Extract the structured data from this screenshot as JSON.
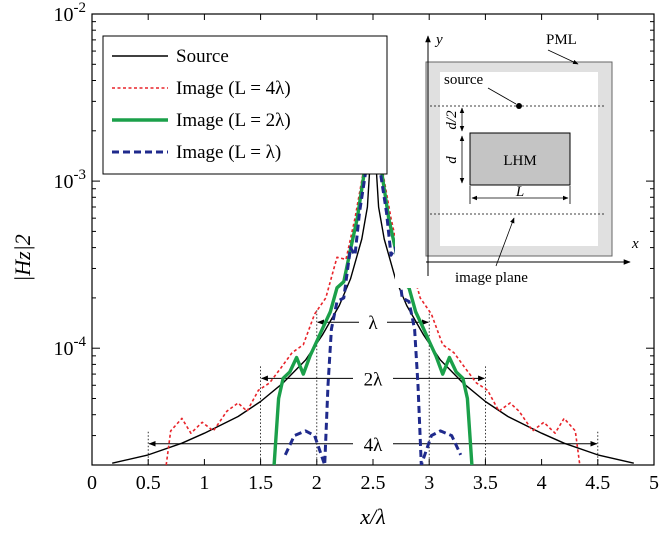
{
  "chart_data": {
    "type": "line",
    "xlabel": "x/λ",
    "ylabel": "|Hz|2",
    "xlim": [
      0,
      5
    ],
    "ylim": [
      2e-05,
      0.01
    ],
    "yscale": "log",
    "xticks": [
      0,
      0.5,
      1,
      1.5,
      2,
      2.5,
      3,
      3.5,
      4,
      4.5,
      5
    ],
    "xtick_labels": [
      "0",
      "0.5",
      "1",
      "1.5",
      "2",
      "2.5",
      "3",
      "3.5",
      "4",
      "4.5",
      "5"
    ],
    "yticks": [
      0.0001,
      0.001,
      0.01
    ],
    "ytick_labels": [
      {
        "base": "10",
        "exp": "-4"
      },
      {
        "base": "10",
        "exp": "-3"
      },
      {
        "base": "10",
        "exp": "-2"
      }
    ],
    "legend_position": "top-left",
    "series": [
      {
        "name": "Source",
        "color": "#000000",
        "style": "solid",
        "x": [
          0.18,
          0.5,
          0.8,
          1.0,
          1.3,
          1.5,
          1.7,
          1.9,
          2.05,
          2.2,
          2.3,
          2.4,
          2.45,
          2.48,
          2.5,
          2.52,
          2.55,
          2.6,
          2.7,
          2.8,
          2.95,
          3.1,
          3.3,
          3.5,
          3.7,
          4.0,
          4.2,
          4.5,
          4.82
        ],
        "y": [
          2.05e-05,
          2.3e-05,
          2.7e-05,
          3.1e-05,
          3.9e-05,
          4.8e-05,
          6.2e-05,
          8.5e-05,
          0.00012,
          0.00018,
          0.00026,
          0.00045,
          0.0007,
          0.0015,
          0.0045,
          0.0015,
          0.0007,
          0.00045,
          0.00026,
          0.00018,
          0.00012,
          8.5e-05,
          6.2e-05,
          4.8e-05,
          3.9e-05,
          3.1e-05,
          2.7e-05,
          2.3e-05,
          2.05e-05
        ]
      },
      {
        "name": "Image (L = 4λ)",
        "color": "#e8242a",
        "style": "dotted",
        "x": [
          0.66,
          0.7,
          0.8,
          0.88,
          0.98,
          1.08,
          1.2,
          1.3,
          1.38,
          1.48,
          1.58,
          1.68,
          1.78,
          1.88,
          1.98,
          2.08,
          2.18,
          2.26,
          2.34,
          2.42,
          2.5,
          2.58,
          2.66,
          2.74,
          2.82,
          2.92,
          3.02,
          3.12,
          3.22,
          3.32,
          3.42,
          3.52,
          3.62,
          3.72,
          3.8,
          3.92,
          4.02,
          4.12,
          4.2,
          4.3,
          4.34
        ],
        "y": [
          2e-05,
          3.2e-05,
          3.8e-05,
          3.1e-05,
          3.6e-05,
          3.2e-05,
          4.2e-05,
          4.7e-05,
          4.2e-05,
          5.6e-05,
          6.2e-05,
          7.6e-05,
          9.4e-05,
          0.000105,
          0.00016,
          0.0002,
          0.00035,
          0.00034,
          0.0006,
          0.0012,
          0.0021,
          0.0012,
          0.0006,
          0.00034,
          0.00035,
          0.0002,
          0.00016,
          0.000105,
          9.4e-05,
          7.6e-05,
          6.2e-05,
          5.6e-05,
          4.2e-05,
          4.7e-05,
          4.2e-05,
          3.2e-05,
          3.6e-05,
          3.1e-05,
          3.8e-05,
          3.2e-05,
          2e-05
        ]
      },
      {
        "name": "Image (L = 2λ)",
        "color": "#1ba04a",
        "style": "solid",
        "x": [
          1.62,
          1.66,
          1.7,
          1.76,
          1.82,
          1.88,
          1.94,
          2.0,
          2.06,
          2.12,
          2.18,
          2.24,
          2.3,
          2.36,
          2.42,
          2.5,
          2.58,
          2.64,
          2.7,
          2.76,
          2.82,
          2.88,
          2.94,
          3.0,
          3.06,
          3.12,
          3.18,
          3.24,
          3.3,
          3.34,
          3.38
        ],
        "y": [
          2e-05,
          5e-05,
          6.6e-05,
          7.2e-05,
          8.8e-05,
          7e-05,
          9e-05,
          0.00011,
          0.000135,
          0.000165,
          0.00023,
          0.00025,
          0.00039,
          0.0006,
          0.0011,
          0.0021,
          0.0011,
          0.0006,
          0.00039,
          0.00025,
          0.00023,
          0.000165,
          0.000135,
          0.00011,
          9e-05,
          7e-05,
          8.8e-05,
          7.2e-05,
          6.6e-05,
          5e-05,
          2e-05
        ]
      },
      {
        "name": "Image (L = λ)",
        "color": "#1f2a8c",
        "style": "dashed",
        "x": [
          1.72,
          1.8,
          1.9,
          1.98,
          2.03,
          2.07,
          2.1,
          2.13,
          2.18,
          2.24,
          2.3,
          2.34,
          2.38,
          2.44,
          2.5,
          2.56,
          2.62,
          2.66,
          2.7,
          2.76,
          2.82,
          2.87,
          2.9,
          2.93,
          2.97,
          3.02,
          3.1,
          3.2,
          3.28
        ],
        "y": [
          2.3e-05,
          3e-05,
          3.2e-05,
          3e-05,
          2.4e-05,
          2e-05,
          6e-05,
          0.00013,
          0.00019,
          0.0002,
          0.0004,
          0.00036,
          0.00065,
          0.0012,
          0.0021,
          0.0012,
          0.00065,
          0.00036,
          0.0004,
          0.0002,
          0.00019,
          0.00013,
          6e-05,
          2e-05,
          2.4e-05,
          3e-05,
          3.2e-05,
          3e-05,
          2.3e-05
        ]
      }
    ],
    "annotations": [
      {
        "label": "λ",
        "x_from": 2.0,
        "x_to": 3.0,
        "y": 0.000143
      },
      {
        "label": "2λ",
        "x_from": 1.5,
        "x_to": 3.5,
        "y": 6.6e-05
      },
      {
        "label": "4λ",
        "x_from": 0.5,
        "x_to": 4.5,
        "y": 2.68e-05
      }
    ],
    "inset": {
      "pml_label": "PML",
      "source_label": "source",
      "lhm_label": "LHM",
      "image_plane_label": "image plane",
      "x_axis_label": "x",
      "y_axis_label": "y",
      "d_label": "d",
      "d_half_label": "d/2",
      "L_label": "L"
    }
  }
}
